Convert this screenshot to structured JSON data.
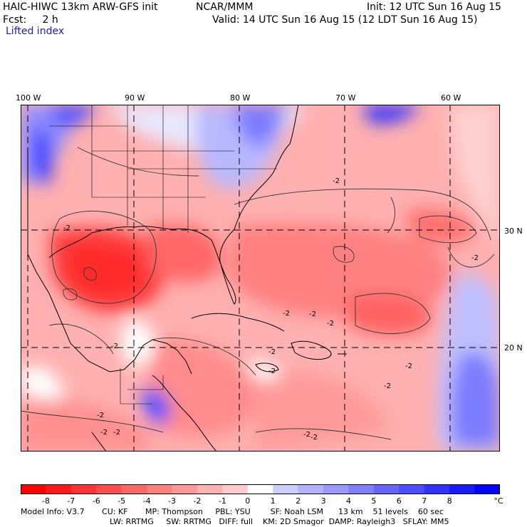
{
  "header": {
    "model": "HAIC-HIWC 13km ARW-GFS init",
    "org": "NCAR/MMM",
    "init": "Init: 12 UTC Sun 16 Aug 15",
    "fcst": "Fcst:     2 h",
    "valid": "Valid: 14 UTC Sun 16 Aug 15 (12 LDT Sun 16 Aug 15)",
    "field": "Lifted index"
  },
  "longitude_labels": [
    "100 W",
    "90 W",
    "80 W",
    "70 W",
    "60 W"
  ],
  "latitude_labels": [
    "30 N",
    "20 N"
  ],
  "contour_labels": [
    "-2",
    "-2",
    "-2",
    "-2",
    "-2",
    "-2",
    "-2",
    "-2",
    "-2",
    "-2",
    "-2",
    "-2",
    "-2",
    "-2",
    "-2",
    "-2"
  ],
  "colorbar": {
    "labels": [
      "-8",
      "-7",
      "-6",
      "-5",
      "-4",
      "-3",
      "-2",
      "-1",
      "0",
      "1",
      "2",
      "3",
      "4",
      "5",
      "6",
      "7",
      "8"
    ],
    "unit": "°C",
    "colors": [
      "#ff0000",
      "#ff1919",
      "#ff3333",
      "#ff4c4c",
      "#ff6666",
      "#ff7f7f",
      "#ff9999",
      "#ffb2b2",
      "#ffcccc",
      "#ffffff",
      "#ccccff",
      "#b2b2ff",
      "#9999ff",
      "#7f7fff",
      "#6666ff",
      "#4c4cff",
      "#3333ff",
      "#1919ff",
      "#0000ff"
    ]
  },
  "footer": {
    "line1": "Model Info: V3.7       CU: KF       MP: Thompson     PBL: YSU        SF: Noah LSM      13 km    51 levels    60 sec",
    "line2": "LW: RRTMG     SW: RRTMG   DIFF: full    KM: 2D Smagor  DAMP: Rayleigh3   SFLAY: MM5"
  }
}
